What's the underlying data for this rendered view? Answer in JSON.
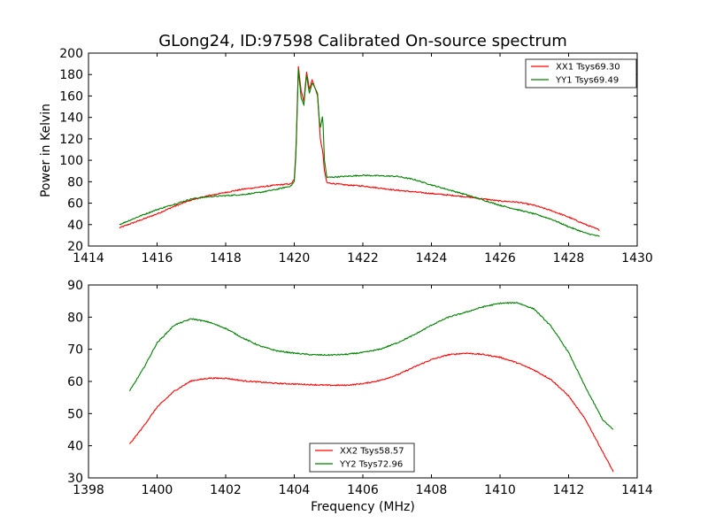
{
  "figure_title": "GLong24, ID:97598 Calibrated On-source spectrum",
  "colors": {
    "xx": "#ff0000",
    "yy": "#008000",
    "axis": "#000000",
    "background": "#ffffff"
  },
  "chart_data": [
    {
      "type": "line",
      "title": "GLong24, ID:97598 Calibrated On-source spectrum",
      "xlabel": "",
      "ylabel": "Power in Kelvin",
      "xlim": [
        1414,
        1430
      ],
      "ylim": [
        20,
        200
      ],
      "xticks": [
        "1414",
        "1416",
        "1418",
        "1420",
        "1422",
        "1424",
        "1426",
        "1428",
        "1430"
      ],
      "yticks": [
        "20",
        "40",
        "60",
        "80",
        "100",
        "120",
        "140",
        "160",
        "180",
        "200"
      ],
      "grid": false,
      "legend_position": "upper right",
      "series": [
        {
          "name": "XX1 Tsys69.30",
          "color": "#ff0000",
          "points": [
            [
              1414.9,
              37
            ],
            [
              1415.5,
              44
            ],
            [
              1416,
              50
            ],
            [
              1416.5,
              57
            ],
            [
              1417,
              63
            ],
            [
              1417.5,
              67
            ],
            [
              1418,
              70
            ],
            [
              1418.5,
              73
            ],
            [
              1419,
              75
            ],
            [
              1419.5,
              77
            ],
            [
              1419.9,
              78
            ],
            [
              1420.0,
              82
            ],
            [
              1420.05,
              110
            ],
            [
              1420.12,
              188
            ],
            [
              1420.2,
              165
            ],
            [
              1420.28,
              155
            ],
            [
              1420.36,
              183
            ],
            [
              1420.44,
              166
            ],
            [
              1420.52,
              175
            ],
            [
              1420.6,
              168
            ],
            [
              1420.68,
              160
            ],
            [
              1420.76,
              120
            ],
            [
              1420.83,
              108
            ],
            [
              1420.88,
              90
            ],
            [
              1420.95,
              79
            ],
            [
              1421.5,
              77
            ],
            [
              1422,
              76
            ],
            [
              1423,
              72
            ],
            [
              1424,
              69
            ],
            [
              1425,
              66
            ],
            [
              1425.5,
              64
            ],
            [
              1426,
              62
            ],
            [
              1426.5,
              61
            ],
            [
              1427,
              58
            ],
            [
              1427.5,
              53
            ],
            [
              1428,
              47
            ],
            [
              1428.5,
              40
            ],
            [
              1428.9,
              35
            ]
          ]
        },
        {
          "name": "YY1 Tsys69.49",
          "color": "#008000",
          "points": [
            [
              1414.9,
              40
            ],
            [
              1415.5,
              48
            ],
            [
              1416,
              54
            ],
            [
              1416.5,
              59
            ],
            [
              1417,
              64
            ],
            [
              1417.5,
              66
            ],
            [
              1418,
              67
            ],
            [
              1418.5,
              68
            ],
            [
              1419,
              70
            ],
            [
              1419.5,
              73
            ],
            [
              1419.9,
              76
            ],
            [
              1420.0,
              80
            ],
            [
              1420.05,
              105
            ],
            [
              1420.12,
              185
            ],
            [
              1420.2,
              158
            ],
            [
              1420.28,
              152
            ],
            [
              1420.36,
              180
            ],
            [
              1420.44,
              162
            ],
            [
              1420.52,
              172
            ],
            [
              1420.6,
              168
            ],
            [
              1420.68,
              162
            ],
            [
              1420.72,
              142
            ],
            [
              1420.76,
              130
            ],
            [
              1420.83,
              142
            ],
            [
              1420.88,
              100
            ],
            [
              1420.95,
              84
            ],
            [
              1421.5,
              85
            ],
            [
              1422,
              86
            ],
            [
              1423,
              85
            ],
            [
              1423.5,
              82
            ],
            [
              1424,
              77
            ],
            [
              1425,
              68
            ],
            [
              1425.5,
              63
            ],
            [
              1426,
              58
            ],
            [
              1426.5,
              54
            ],
            [
              1427,
              50
            ],
            [
              1427.5,
              45
            ],
            [
              1428,
              38
            ],
            [
              1428.5,
              32
            ],
            [
              1428.9,
              29
            ]
          ]
        }
      ]
    },
    {
      "type": "line",
      "title": "",
      "xlabel": "Frequency (MHz)",
      "ylabel": "",
      "xlim": [
        1398,
        1414
      ],
      "ylim": [
        30,
        90
      ],
      "xticks": [
        "1398",
        "1400",
        "1402",
        "1404",
        "1406",
        "1408",
        "1410",
        "1412",
        "1414"
      ],
      "yticks": [
        "30",
        "40",
        "50",
        "60",
        "70",
        "80",
        "90"
      ],
      "grid": false,
      "legend_position": "lower center",
      "series": [
        {
          "name": "XX2 Tsys58.57",
          "color": "#ff0000",
          "points": [
            [
              1399.2,
              40.5
            ],
            [
              1399.6,
              46
            ],
            [
              1400,
              52
            ],
            [
              1400.5,
              57
            ],
            [
              1401,
              60.2
            ],
            [
              1401.5,
              61
            ],
            [
              1402,
              61
            ],
            [
              1402.5,
              60.2
            ],
            [
              1403,
              59.8
            ],
            [
              1403.5,
              59.4
            ],
            [
              1404,
              59.2
            ],
            [
              1404.5,
              59
            ],
            [
              1405,
              58.8
            ],
            [
              1405.5,
              58.8
            ],
            [
              1406,
              59.3
            ],
            [
              1406.5,
              60.3
            ],
            [
              1407,
              62
            ],
            [
              1407.5,
              64.5
            ],
            [
              1408,
              66.8
            ],
            [
              1408.5,
              68.3
            ],
            [
              1409,
              68.8
            ],
            [
              1409.5,
              68.4
            ],
            [
              1410,
              67.5
            ],
            [
              1410.5,
              65.8
            ],
            [
              1411,
              63.5
            ],
            [
              1411.5,
              60.5
            ],
            [
              1412,
              55.5
            ],
            [
              1412.5,
              48
            ],
            [
              1413,
              38
            ],
            [
              1413.3,
              32
            ]
          ]
        },
        {
          "name": "YY2 Tsys72.96",
          "color": "#008000",
          "points": [
            [
              1399.2,
              57
            ],
            [
              1399.6,
              64
            ],
            [
              1400,
              72
            ],
            [
              1400.5,
              77.5
            ],
            [
              1401,
              79.5
            ],
            [
              1401.5,
              78.5
            ],
            [
              1402,
              76.5
            ],
            [
              1402.5,
              73.5
            ],
            [
              1403,
              71
            ],
            [
              1403.5,
              69.5
            ],
            [
              1404,
              68.8
            ],
            [
              1404.5,
              68.3
            ],
            [
              1405,
              68.2
            ],
            [
              1405.5,
              68.4
            ],
            [
              1406,
              69
            ],
            [
              1406.5,
              70
            ],
            [
              1407,
              72
            ],
            [
              1407.5,
              74.5
            ],
            [
              1408,
              77.5
            ],
            [
              1408.5,
              80
            ],
            [
              1409,
              81.5
            ],
            [
              1409.5,
              83.2
            ],
            [
              1410,
              84.3
            ],
            [
              1410.5,
              84.5
            ],
            [
              1411,
              82.5
            ],
            [
              1411.5,
              77
            ],
            [
              1412,
              69
            ],
            [
              1412.5,
              58
            ],
            [
              1413,
              48
            ],
            [
              1413.3,
              45
            ]
          ]
        }
      ]
    }
  ]
}
